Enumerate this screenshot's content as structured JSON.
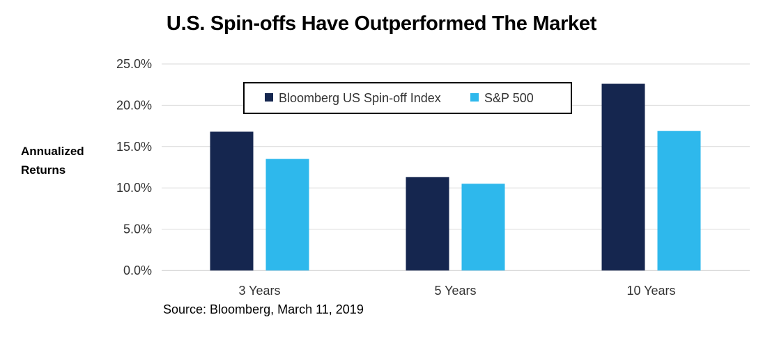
{
  "chart_data": {
    "type": "bar",
    "title": "U.S. Spin-offs Have Outperformed The Market",
    "ylabel": "Annualized Returns",
    "xlabel": "",
    "source": "Source: Bloomberg, March 11, 2019",
    "categories": [
      "3 Years",
      "5 Years",
      "10 Years"
    ],
    "series": [
      {
        "name": "Bloomberg US Spin-off Index",
        "color": "#15264f",
        "values": [
          16.8,
          11.3,
          22.6
        ]
      },
      {
        "name": "S&P 500",
        "color": "#2eb8ec",
        "values": [
          13.5,
          10.5,
          16.9
        ]
      }
    ],
    "ylim": [
      0,
      25
    ],
    "yticks": [
      0,
      5,
      10,
      15,
      20,
      25
    ],
    "ytick_labels": [
      "0.0%",
      "5.0%",
      "10.0%",
      "15.0%",
      "20.0%",
      "25.0%"
    ],
    "grid": true,
    "legend_position": "top-center",
    "gridline_color": "#d9d9d9"
  }
}
